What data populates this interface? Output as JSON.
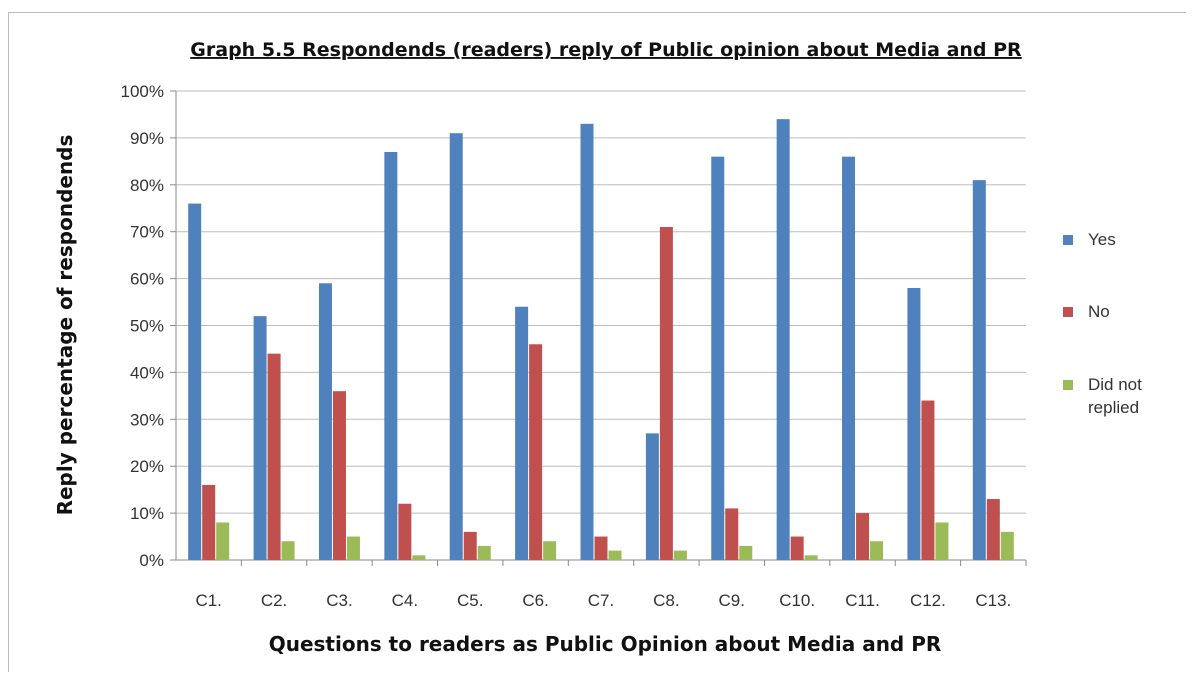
{
  "chart_data": {
    "type": "bar",
    "title": "Graph 5.5 Respondends (readers) reply of Public opinion about Media and PR",
    "xlabel": "Questions to readers as Public Opinion about Media and PR",
    "ylabel": "Reply percentage of respondends",
    "ylim": [
      0,
      100
    ],
    "y_ticks": [
      "0%",
      "10%",
      "20%",
      "30%",
      "40%",
      "50%",
      "60%",
      "70%",
      "80%",
      "90%",
      "100%"
    ],
    "grid": true,
    "legend_position": "right",
    "categories": [
      "C1.",
      "C2.",
      "C3.",
      "C4.",
      "C5.",
      "C6.",
      "C7.",
      "C8.",
      "C9.",
      "C10.",
      "C11.",
      "C12.",
      "C13."
    ],
    "series": [
      {
        "name": "Yes",
        "color": "#4F81BD",
        "values": [
          76,
          52,
          59,
          87,
          91,
          54,
          93,
          27,
          86,
          94,
          86,
          58,
          81
        ]
      },
      {
        "name": "No",
        "color": "#C0504D",
        "values": [
          16,
          44,
          36,
          12,
          6,
          46,
          5,
          71,
          11,
          5,
          10,
          34,
          13
        ]
      },
      {
        "name": "Did not replied",
        "color": "#9BBB59",
        "values": [
          8,
          4,
          5,
          1,
          3,
          4,
          2,
          2,
          3,
          1,
          4,
          8,
          6
        ]
      }
    ],
    "legend_lines": [
      [
        "Yes"
      ],
      [
        "No"
      ],
      [
        "Did not",
        "replied"
      ]
    ]
  }
}
